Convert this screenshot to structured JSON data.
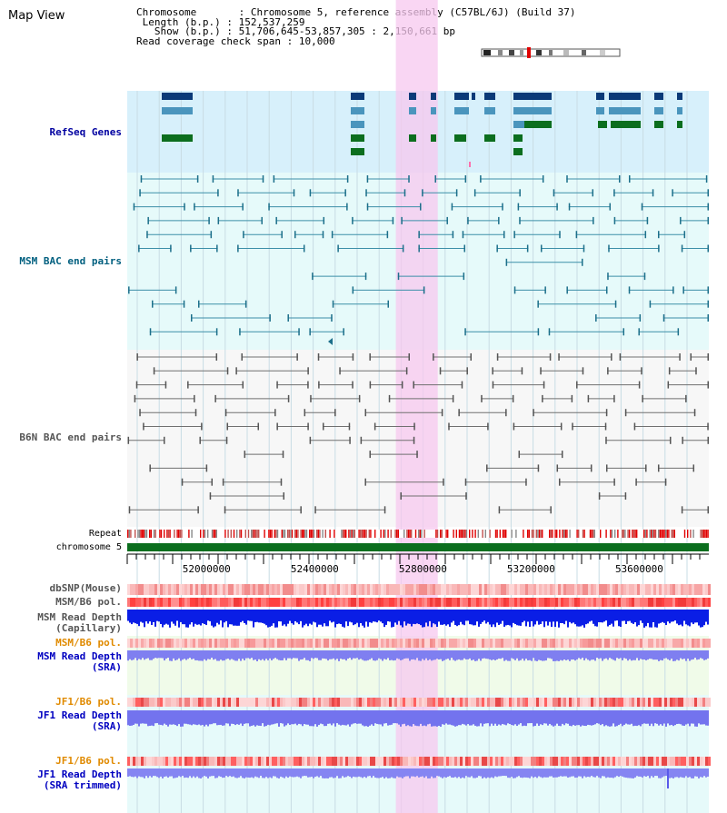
{
  "view_title": "Map View",
  "info": [
    {
      "key": "Chromosome",
      "value": "Chromosome 5, reference assembly (C57BL/6J) (Build 37)"
    },
    {
      "key": "Length (b.p.)",
      "value": "152,537,259"
    },
    {
      "key": "Show (b.p.)",
      "value": "51,706,645-53,857,305 : 2,150,661 bp"
    },
    {
      "key": "Read coverage check span",
      "value": "10,000"
    }
  ],
  "tracks": {
    "refseq": {
      "label": "RefSeq Genes",
      "color": "#0000a0"
    },
    "msm_bac": {
      "label": "MSM BAC end pairs",
      "color": "#005f7f"
    },
    "b6n_bac": {
      "label": "B6N BAC end pairs",
      "color": "#555555"
    },
    "repeat": {
      "label": "Repeat"
    },
    "chromosome": {
      "label": "chromosome 5"
    },
    "dbsnp": {
      "label": "dbSNP(Mouse)",
      "color": "#555555"
    },
    "msm_b6_pol_1": {
      "label": "MSM/B6 pol.",
      "color": "#555555"
    },
    "msm_read_cap": {
      "line1": "MSM Read Depth",
      "line2": "(Capillary)",
      "color": "#555555"
    },
    "msm_b6_pol_2": {
      "label": "MSM/B6 pol.",
      "color": "#e08a00"
    },
    "msm_read_sra": {
      "line1": "MSM Read Depth",
      "line2": "(SRA)",
      "color": "#0000c0"
    },
    "jf1_b6_pol_1": {
      "label": "JF1/B6 pol.",
      "color": "#e08a00"
    },
    "jf1_read_sra": {
      "line1": "JF1 Read Depth",
      "line2": "(SRA)",
      "color": "#0000c0"
    },
    "jf1_b6_pol_2": {
      "label": "JF1/B6 pol.",
      "color": "#e08a00"
    },
    "jf1_read_trim": {
      "line1": "JF1 Read Depth",
      "line2": "(SRA trimmed)",
      "color": "#0000c0"
    }
  },
  "axis": {
    "ticks": [
      "52000000",
      "52400000",
      "52800000",
      "53200000",
      "53600000"
    ],
    "tick_values": [
      52000000,
      52400000,
      52800000,
      53200000,
      53600000
    ],
    "range": [
      51706645,
      53857305
    ]
  },
  "highlight_range": [
    52700000,
    52855000
  ]
}
